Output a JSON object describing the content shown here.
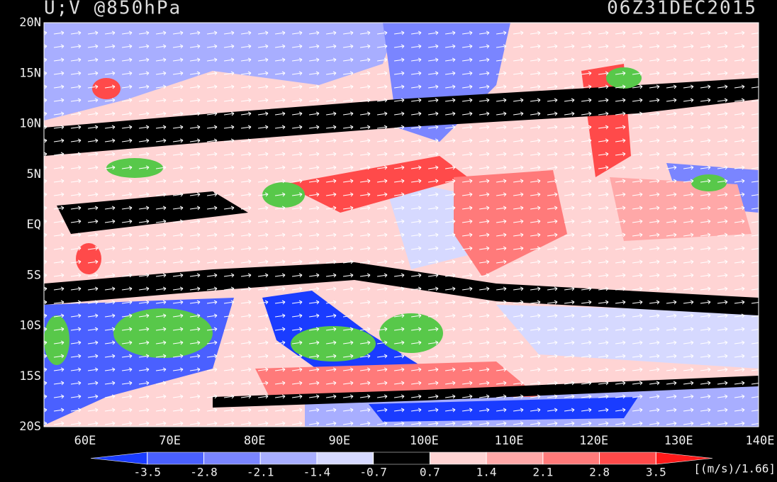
{
  "header": {
    "title": "U;V @850hPa",
    "time": "06Z31DEC2015"
  },
  "map": {
    "lat_labels": [
      "20N",
      "15N",
      "10N",
      "5N",
      "EQ",
      "5S",
      "10S",
      "15S",
      "20S"
    ],
    "lon_labels": [
      "60E",
      "70E",
      "80E",
      "90E",
      "100E",
      "110E",
      "120E",
      "130E",
      "140E"
    ]
  },
  "colorbar": {
    "levels": [
      -3.5,
      -2.8,
      -2.1,
      -1.4,
      -0.7,
      0.7,
      1.4,
      2.1,
      2.8,
      3.5
    ],
    "colors": [
      "#1a3cff",
      "#4a60ff",
      "#7a85ff",
      "#a8aeff",
      "#d6d9ff",
      "#000000",
      "#ffd4d4",
      "#ffa8a8",
      "#ff7a7a",
      "#ff4a4a",
      "#ff1a1a"
    ],
    "unit": "[(m/s)/1.66]"
  }
}
